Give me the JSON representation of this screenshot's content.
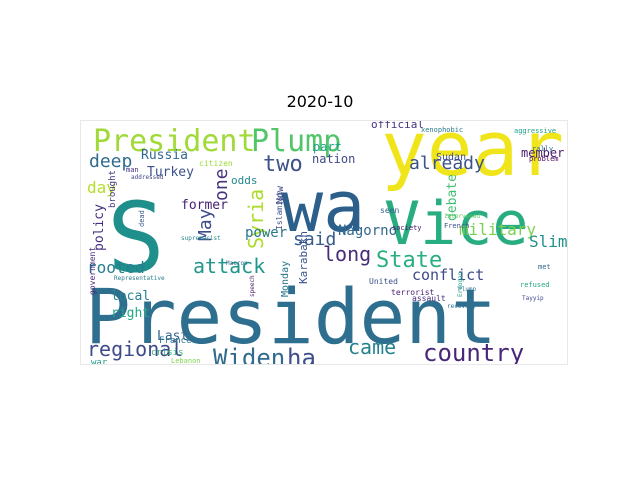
{
  "chart_data": {
    "type": "wordcloud",
    "title": "2020-10",
    "colormap": "viridis",
    "words": [
      {
        "text": "President",
        "weight": 100,
        "color": "#2e6e8e"
      },
      {
        "text": "S",
        "weight": 96,
        "color": "#1f8f8b"
      },
      {
        "text": "wa",
        "weight": 88,
        "color": "#2c5f8a"
      },
      {
        "text": "year",
        "weight": 80,
        "color": "#f0e51b"
      },
      {
        "text": "Vice",
        "weight": 72,
        "color": "#27ad81"
      },
      {
        "text": "President",
        "weight": 40,
        "color": "#a0da39"
      },
      {
        "text": "Plump",
        "weight": 36,
        "color": "#52c569"
      },
      {
        "text": "two",
        "weight": 30,
        "color": "#3b528b"
      },
      {
        "text": "State",
        "weight": 27,
        "color": "#29af7f"
      },
      {
        "text": "country",
        "weight": 27,
        "color": "#482777"
      },
      {
        "text": "Widen",
        "weight": 26,
        "color": "#306a8e"
      },
      {
        "text": "ha",
        "weight": 26,
        "color": "#3d4e8a"
      },
      {
        "text": "attack",
        "weight": 23,
        "color": "#1f978b"
      },
      {
        "text": "regional",
        "weight": 22,
        "color": "#3e4a89"
      },
      {
        "text": "long",
        "weight": 22,
        "color": "#472c7a"
      },
      {
        "text": "came",
        "weight": 21,
        "color": "#26828e"
      },
      {
        "text": "Syria",
        "weight": 20,
        "color": "#addc30"
      },
      {
        "text": "said",
        "weight": 19,
        "color": "#365c8d"
      },
      {
        "text": "already",
        "weight": 18,
        "color": "#3b528b"
      },
      {
        "text": "deep",
        "weight": 18,
        "color": "#2f6b8e"
      },
      {
        "text": "one",
        "weight": 18,
        "color": "#46337e"
      },
      {
        "text": "May",
        "weight": 16,
        "color": "#3e4c8a"
      },
      {
        "text": "day",
        "weight": 15,
        "color": "#b5de2b"
      },
      {
        "text": "military",
        "weight": 15,
        "color": "#7ad151"
      },
      {
        "text": "Slim",
        "weight": 15,
        "color": "#21918c"
      },
      {
        "text": "rooted",
        "weight": 14,
        "color": "#277f8e"
      },
      {
        "text": "conflict",
        "weight": 14,
        "color": "#3e4989"
      },
      {
        "text": "Armenian",
        "weight": 14,
        "color": "#472d7b"
      },
      {
        "text": "Nagorno",
        "weight": 13,
        "color": "#31688e"
      },
      {
        "text": "power",
        "weight": 13,
        "color": "#2a788e"
      },
      {
        "text": "Russia",
        "weight": 13,
        "color": "#31688e"
      },
      {
        "text": "Turkey",
        "weight": 13,
        "color": "#3b528b"
      },
      {
        "text": "former",
        "weight": 13,
        "color": "#482173"
      },
      {
        "text": "Last",
        "weight": 13,
        "color": "#33638d"
      },
      {
        "text": "policy",
        "weight": 12,
        "color": "#46307e"
      },
      {
        "text": "local",
        "weight": 12,
        "color": "#25848e"
      },
      {
        "text": "right",
        "weight": 12,
        "color": "#22a884"
      },
      {
        "text": "debate",
        "weight": 12,
        "color": "#44bf70"
      },
      {
        "text": "member",
        "weight": 11,
        "color": "#481b6d"
      },
      {
        "text": "nation",
        "weight": 11,
        "color": "#3e4a89"
      },
      {
        "text": "part",
        "weight": 11,
        "color": "#1fa287"
      },
      {
        "text": "official",
        "weight": 11,
        "color": "#46327e"
      },
      {
        "text": "odds",
        "weight": 11,
        "color": "#24878e"
      },
      {
        "text": "Karabakh",
        "weight": 11,
        "color": "#3a548c"
      },
      {
        "text": "Sudan",
        "weight": 10,
        "color": "#3d4d8a"
      },
      {
        "text": "Monday",
        "weight": 10,
        "color": "#2a768e"
      },
      {
        "text": "Now",
        "weight": 10,
        "color": "#3f4889"
      },
      {
        "text": "three",
        "weight": 9,
        "color": "#46327e"
      },
      {
        "text": "question",
        "weight": 9,
        "color": "#482475"
      },
      {
        "text": "crisis",
        "weight": 9,
        "color": "#35b779"
      },
      {
        "text": "France",
        "weight": 9,
        "color": "#2c738e"
      },
      {
        "text": "war",
        "weight": 9,
        "color": "#1e9b8a"
      },
      {
        "text": "brought",
        "weight": 9,
        "color": "#443983"
      },
      {
        "text": "government",
        "weight": 8,
        "color": "#482878"
      },
      {
        "text": "seen",
        "weight": 8,
        "color": "#33638d"
      },
      {
        "text": "citizen",
        "weight": 8,
        "color": "#9fda3a"
      },
      {
        "text": "Islamist",
        "weight": 8,
        "color": "#3e4c8a"
      },
      {
        "text": "United",
        "weight": 8,
        "color": "#3b528b"
      },
      {
        "text": "terrorist",
        "weight": 8,
        "color": "#481f70"
      },
      {
        "text": "assault",
        "weight": 8,
        "color": "#46307e"
      },
      {
        "text": "xenophobic",
        "weight": 7,
        "color": "#287c8e"
      },
      {
        "text": "aggressive",
        "weight": 7,
        "color": "#1fa188"
      },
      {
        "text": "society",
        "weight": 7,
        "color": "#471063"
      },
      {
        "text": "French",
        "weight": 7,
        "color": "#3b528b"
      },
      {
        "text": "rally",
        "weight": 7,
        "color": "#2d708e"
      },
      {
        "text": "problem",
        "weight": 7,
        "color": "#440154"
      },
      {
        "text": "met",
        "weight": 7,
        "color": "#31688e"
      },
      {
        "text": "refused",
        "weight": 7,
        "color": "#22a785"
      },
      {
        "text": "Lebanon",
        "weight": 7,
        "color": "#7fd34e"
      },
      {
        "text": "dead",
        "weight": 7,
        "color": "#38598c"
      },
      {
        "text": "man",
        "weight": 7,
        "color": "#472c7a"
      },
      {
        "text": "Representative",
        "weight": 6,
        "color": "#287d8e"
      },
      {
        "text": "Macron",
        "weight": 6,
        "color": "#2f6b8e"
      },
      {
        "text": "Tayyip",
        "weight": 6,
        "color": "#3e4989"
      },
      {
        "text": "supremacist",
        "weight": 6,
        "color": "#24868e"
      },
      {
        "text": "intervened",
        "weight": 6,
        "color": "#5ec962"
      },
      {
        "text": "addressed",
        "weight": 6,
        "color": "#3f4788"
      },
      {
        "text": "Plump",
        "weight": 6,
        "color": "#2c728e"
      },
      {
        "text": "speech",
        "weight": 6,
        "color": "#481467"
      },
      {
        "text": "Erdogan",
        "weight": 6,
        "color": "#1f9f88"
      },
      {
        "text": "recovery",
        "weight": 6,
        "color": "#2e6f8e"
      }
    ]
  }
}
